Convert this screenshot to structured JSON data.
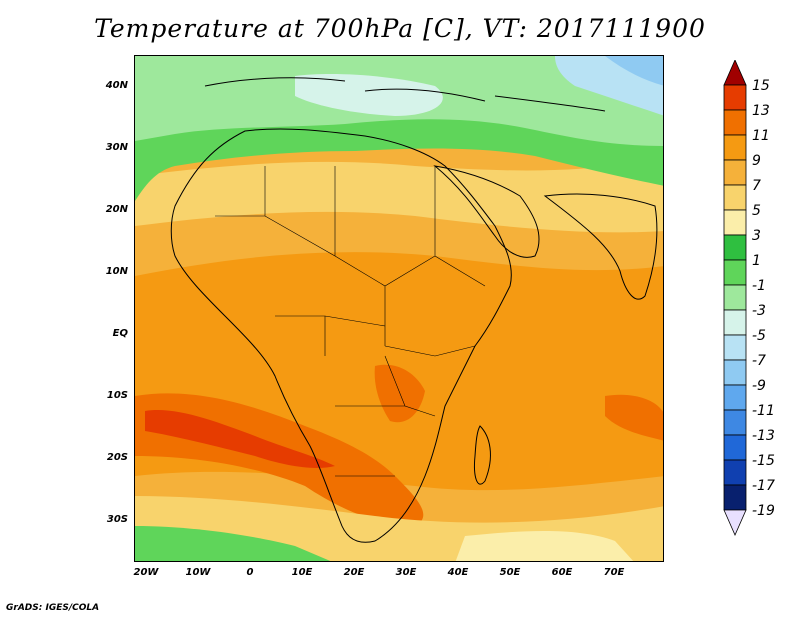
{
  "title": "Temperature at 700hPa [C], VT: 2017111900",
  "credit": "GrADS: IGES/COLA",
  "map": {
    "lat_labels": [
      "40N",
      "30N",
      "20N",
      "10N",
      "EQ",
      "10S",
      "20S",
      "30S"
    ],
    "lon_labels": [
      "20W",
      "10W",
      "0",
      "10E",
      "20E",
      "30E",
      "40E",
      "50E",
      "60E",
      "70E"
    ]
  },
  "colorbar": {
    "labels": [
      "15",
      "13",
      "11",
      "9",
      "7",
      "5",
      "3",
      "1",
      "-1",
      "-3",
      "-5",
      "-7",
      "-9",
      "-11",
      "-13",
      "-15",
      "-17",
      "-19"
    ],
    "colors": [
      "#a00000",
      "#e63c00",
      "#f07000",
      "#f59a12",
      "#f5b13a",
      "#f8d36c",
      "#fbeeaa",
      "#2fbf40",
      "#5fd55a",
      "#9ee89c",
      "#d6f3ea",
      "#b8e2f4",
      "#8fcaf2",
      "#5fa8ee",
      "#3e88e3",
      "#2068d8",
      "#1040b0",
      "#08206e",
      "#e8e0ff"
    ]
  }
}
